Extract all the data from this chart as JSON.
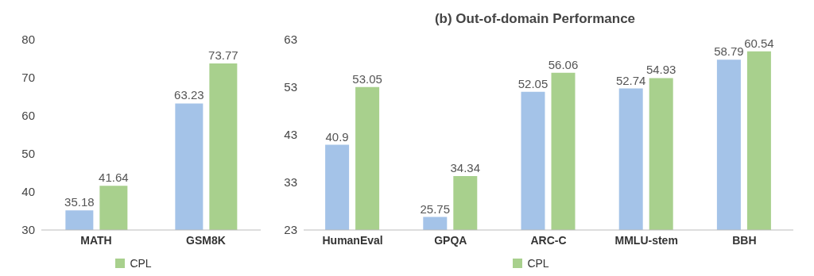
{
  "chart_data": [
    {
      "type": "bar",
      "categories": [
        "MATH",
        "GSM8K"
      ],
      "series": [
        {
          "color": "#a4c3e8",
          "values": [
            35.18,
            63.23
          ]
        },
        {
          "name": "CPL",
          "color": "#a8d08d",
          "values": [
            41.64,
            73.77
          ]
        }
      ],
      "ylim": [
        30,
        80
      ],
      "yticks": [
        30,
        40,
        50,
        60,
        70,
        80
      ],
      "grid": false,
      "legend": "bottom",
      "data_labels": true
    },
    {
      "type": "bar",
      "title": "(b) Out-of-domain Performance",
      "categories": [
        "HumanEval",
        "GPQA",
        "ARC-C",
        "MMLU-stem",
        "BBH"
      ],
      "series": [
        {
          "color": "#a4c3e8",
          "values": [
            40.9,
            25.75,
            52.05,
            52.74,
            58.79
          ]
        },
        {
          "name": "CPL",
          "color": "#a8d08d",
          "values": [
            53.05,
            34.34,
            56.06,
            54.93,
            60.54
          ]
        }
      ],
      "ylim": [
        23,
        63
      ],
      "yticks": [
        23,
        33,
        43,
        53,
        63
      ],
      "grid": false,
      "legend": "bottom",
      "data_labels": true
    }
  ]
}
